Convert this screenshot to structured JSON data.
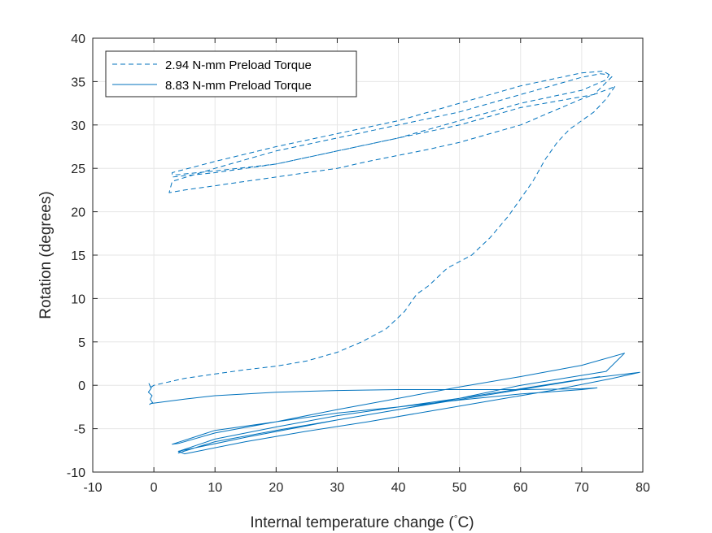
{
  "chart_data": {
    "type": "line",
    "title": "",
    "xlabel_main": "Internal temperature change (",
    "xlabel_degree": "°",
    "xlabel_unit": "C)",
    "ylabel": "Rotation (degrees)",
    "xlim": [
      -10,
      80
    ],
    "ylim": [
      -10,
      40
    ],
    "xticks": [
      -10,
      0,
      10,
      20,
      30,
      40,
      50,
      60,
      70,
      80
    ],
    "yticks": [
      -10,
      -5,
      0,
      5,
      10,
      15,
      20,
      25,
      30,
      35,
      40
    ],
    "grid": true,
    "legend_position": "top-left",
    "color": "#0072BD",
    "series": [
      {
        "name": "2.94 N-mm Preload Torque",
        "style": "dashed",
        "x": [
          -0.5,
          -0.8,
          -0.4,
          0,
          5,
          10,
          15,
          20,
          25,
          30,
          34,
          38,
          41,
          43,
          45,
          48,
          52,
          55,
          58,
          60,
          62,
          64,
          66,
          68,
          70,
          72,
          74,
          75.5,
          75,
          70,
          65,
          60,
          55,
          50,
          45,
          40,
          35,
          30,
          25,
          20,
          15,
          10,
          5,
          2.5,
          3,
          10,
          20,
          30,
          40,
          50,
          60,
          70,
          73,
          74.5,
          74,
          70,
          60,
          50,
          40,
          30,
          20,
          10,
          3,
          3,
          10,
          20,
          30,
          40,
          50,
          60,
          70,
          73.5,
          75,
          72,
          60,
          50,
          40,
          30,
          20,
          10,
          3
        ],
        "y": [
          -0.3,
          0.2,
          -0.2,
          0,
          0.8,
          1.3,
          1.8,
          2.2,
          2.8,
          3.8,
          5,
          6.5,
          8.5,
          10.5,
          11.5,
          13.5,
          15,
          17,
          19.5,
          21.5,
          23.5,
          26,
          28,
          29.5,
          30.5,
          31.5,
          33,
          34.5,
          34.3,
          33,
          31.5,
          30,
          29,
          28,
          27.2,
          26.5,
          25.8,
          25,
          24.5,
          24,
          23.5,
          23,
          22.5,
          22.2,
          23.5,
          25,
          27,
          28.5,
          30,
          31.5,
          33.5,
          35.5,
          35.9,
          35.8,
          35.2,
          34,
          32.5,
          30.5,
          28.5,
          27,
          25.5,
          24.5,
          24,
          24.5,
          25.8,
          27.5,
          29,
          30.5,
          32.5,
          34.5,
          36,
          36.2,
          35.6,
          33.5,
          32,
          30,
          28.5,
          27,
          25.5,
          24.7,
          24.2
        ]
      },
      {
        "name": "8.83 N-mm Preload Torque",
        "style": "solid",
        "x": [
          -0.4,
          -0.9,
          -0.3,
          -0.6,
          -0.2,
          -0.7,
          -0.5,
          5,
          10,
          20,
          30,
          40,
          50,
          60,
          70,
          72.5,
          70,
          60,
          50,
          40,
          30,
          20,
          10,
          3,
          4,
          10,
          20,
          30,
          40,
          50,
          60,
          70,
          77,
          74,
          60,
          50,
          40,
          30,
          20,
          10,
          4,
          4.5,
          10,
          20,
          30,
          40,
          50,
          60,
          70,
          79.5,
          75,
          65,
          55,
          45,
          35,
          25,
          15,
          5,
          4,
          15,
          30,
          45,
          60,
          73
        ],
        "y": [
          -0.3,
          -0.8,
          -1.2,
          -1.6,
          -2.0,
          -2.2,
          -2.1,
          -1.6,
          -1.2,
          -0.8,
          -0.6,
          -0.5,
          -0.5,
          -0.5,
          -0.4,
          -0.3,
          -0.5,
          -1.0,
          -1.7,
          -2.5,
          -3.2,
          -4.2,
          -5.2,
          -6.8,
          -6.7,
          -5.5,
          -4.2,
          -2.8,
          -1.5,
          -0.2,
          1.0,
          2.3,
          3.7,
          1.6,
          0,
          -1.5,
          -2.8,
          -4.0,
          -5.2,
          -6.5,
          -7.8,
          -7.5,
          -6.2,
          -4.8,
          -3.5,
          -2.5,
          -1.5,
          -0.4,
          0.7,
          1.5,
          0.8,
          -0.6,
          -1.8,
          -3.0,
          -4.2,
          -5.3,
          -6.5,
          -7.9,
          -7.6,
          -6.0,
          -4.0,
          -2.2,
          -0.5,
          1.0
        ]
      }
    ]
  }
}
